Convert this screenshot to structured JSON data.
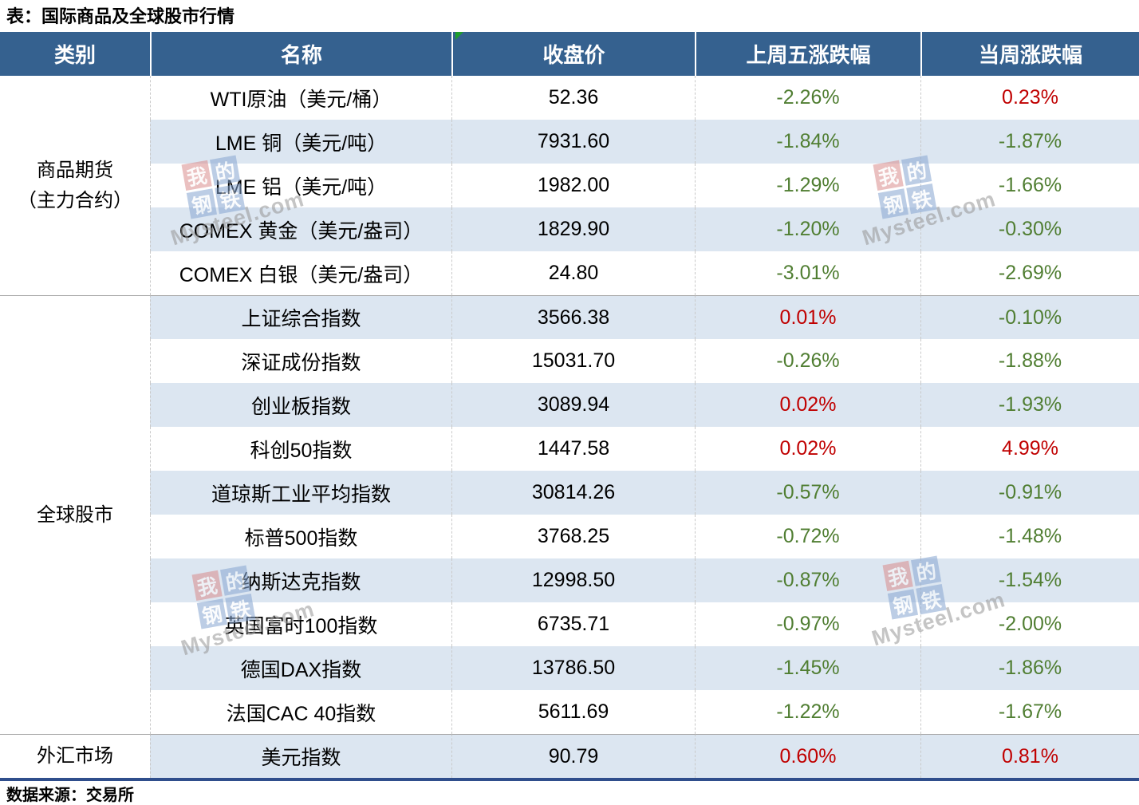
{
  "title": "表：国际商品及全球股市行情",
  "source_note": "数据来源：交易所",
  "table": {
    "headers": [
      "类别",
      "名称",
      "收盘价",
      "上周五涨跌幅",
      "当周涨跌幅"
    ],
    "groups": [
      {
        "category": "商品期货\n（主力合约）",
        "rows": [
          {
            "name": "WTI原油（美元/桶）",
            "close": "52.36",
            "last_friday": "-2.26%",
            "week": "0.23%"
          },
          {
            "name": "LME 铜（美元/吨）",
            "close": "7931.60",
            "last_friday": "-1.84%",
            "week": "-1.87%"
          },
          {
            "name": "LME 铝（美元/吨）",
            "close": "1982.00",
            "last_friday": "-1.29%",
            "week": "-1.66%"
          },
          {
            "name": "COMEX 黄金（美元/盎司）",
            "close": "1829.90",
            "last_friday": "-1.20%",
            "week": "-0.30%"
          },
          {
            "name": "COMEX 白银（美元/盎司）",
            "close": "24.80",
            "last_friday": "-3.01%",
            "week": "-2.69%"
          }
        ]
      },
      {
        "category": "全球股市",
        "rows": [
          {
            "name": "上证综合指数",
            "close": "3566.38",
            "last_friday": "0.01%",
            "week": "-0.10%"
          },
          {
            "name": "深证成份指数",
            "close": "15031.70",
            "last_friday": "-0.26%",
            "week": "-1.88%"
          },
          {
            "name": "创业板指数",
            "close": "3089.94",
            "last_friday": "0.02%",
            "week": "-1.93%"
          },
          {
            "name": "科创50指数",
            "close": "1447.58",
            "last_friday": "0.02%",
            "week": "4.99%"
          },
          {
            "name": "道琼斯工业平均指数",
            "close": "30814.26",
            "last_friday": "-0.57%",
            "week": "-0.91%"
          },
          {
            "name": "标普500指数",
            "close": "3768.25",
            "last_friday": "-0.72%",
            "week": "-1.48%"
          },
          {
            "name": "纳斯达克指数",
            "close": "12998.50",
            "last_friday": "-0.87%",
            "week": "-1.54%"
          },
          {
            "name": "英国富时100指数",
            "close": "6735.71",
            "last_friday": "-0.97%",
            "week": "-2.00%"
          },
          {
            "name": "德国DAX指数",
            "close": "13786.50",
            "last_friday": "-1.45%",
            "week": "-1.86%"
          },
          {
            "name": "法国CAC 40指数",
            "close": "5611.69",
            "last_friday": "-1.22%",
            "week": "-1.67%"
          }
        ]
      },
      {
        "category": "外汇市场",
        "rows": [
          {
            "name": "美元指数",
            "close": "90.79",
            "last_friday": "0.60%",
            "week": "0.81%"
          }
        ]
      }
    ]
  },
  "watermark": {
    "chars": [
      "我",
      "的",
      "钢",
      "铁"
    ],
    "domain": "Mysteel.com"
  },
  "colors": {
    "header_bg": "#35618F",
    "row_stripe": "#DCE6F1",
    "positive_red": "#C00000",
    "negative_green": "#507E32",
    "bottom_border_blue": "#2F4E8C",
    "flag_green": "#1F9E2C"
  },
  "chart_data": {
    "type": "table",
    "title": "表：国际商品及全球股市行情",
    "columns": [
      "类别",
      "名称",
      "收盘价",
      "上周五涨跌幅",
      "当周涨跌幅"
    ],
    "rows": [
      [
        "商品期货（主力合约）",
        "WTI原油（美元/桶）",
        52.36,
        "-2.26%",
        "0.23%"
      ],
      [
        "商品期货（主力合约）",
        "LME 铜（美元/吨）",
        7931.6,
        "-1.84%",
        "-1.87%"
      ],
      [
        "商品期货（主力合约）",
        "LME 铝（美元/吨）",
        1982.0,
        "-1.29%",
        "-1.66%"
      ],
      [
        "商品期货（主力合约）",
        "COMEX 黄金（美元/盎司）",
        1829.9,
        "-1.20%",
        "-0.30%"
      ],
      [
        "商品期货（主力合约）",
        "COMEX 白银（美元/盎司）",
        24.8,
        "-3.01%",
        "-2.69%"
      ],
      [
        "全球股市",
        "上证综合指数",
        3566.38,
        "0.01%",
        "-0.10%"
      ],
      [
        "全球股市",
        "深证成份指数",
        15031.7,
        "-0.26%",
        "-1.88%"
      ],
      [
        "全球股市",
        "创业板指数",
        3089.94,
        "0.02%",
        "-1.93%"
      ],
      [
        "全球股市",
        "科创50指数",
        1447.58,
        "0.02%",
        "4.99%"
      ],
      [
        "全球股市",
        "道琼斯工业平均指数",
        30814.26,
        "-0.57%",
        "-0.91%"
      ],
      [
        "全球股市",
        "标普500指数",
        3768.25,
        "-0.72%",
        "-1.48%"
      ],
      [
        "全球股市",
        "纳斯达克指数",
        12998.5,
        "-0.87%",
        "-1.54%"
      ],
      [
        "全球股市",
        "英国富时100指数",
        6735.71,
        "-0.97%",
        "-2.00%"
      ],
      [
        "全球股市",
        "德国DAX指数",
        13786.5,
        "-1.45%",
        "-1.86%"
      ],
      [
        "全球股市",
        "法国CAC 40指数",
        5611.69,
        "-1.22%",
        "-1.67%"
      ],
      [
        "外汇市场",
        "美元指数",
        90.79,
        "0.60%",
        "0.81%"
      ]
    ],
    "value_color_rule": "negative values green, positive values red",
    "source": "数据来源：交易所"
  }
}
